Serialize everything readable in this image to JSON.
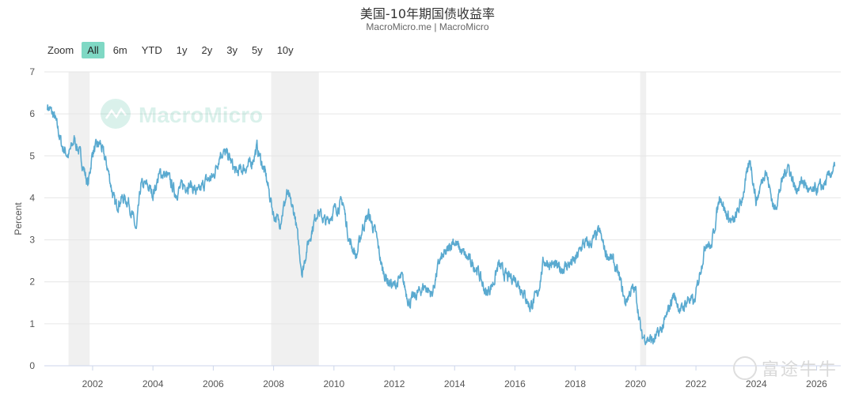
{
  "header": {
    "title": "美国-10年期国债收益率",
    "subtitle": "MacroMicro.me | MacroMicro"
  },
  "zoom": {
    "label": "Zoom",
    "options": [
      "All",
      "6m",
      "YTD",
      "1y",
      "2y",
      "3y",
      "5y",
      "10y"
    ],
    "selected": "All"
  },
  "watermark": {
    "brand": "MacroMicro",
    "corner": "富途牛牛"
  },
  "colors": {
    "line": "#5aaad0",
    "recession": "#f0f0f0",
    "grid": "#e6e6e6"
  },
  "chart_data": {
    "type": "line",
    "title": "美国-10年期国债收益率",
    "ylabel": "Percent",
    "xlabel": "",
    "xlim": [
      2000.4,
      2026.8
    ],
    "ylim": [
      0,
      7
    ],
    "yticks": [
      "0",
      "1",
      "2",
      "3",
      "4",
      "5",
      "6",
      "7"
    ],
    "xticks": [
      "2002",
      "2004",
      "2006",
      "2008",
      "2010",
      "2012",
      "2014",
      "2016",
      "2018",
      "2020",
      "2022",
      "2024",
      "2026"
    ],
    "grid": true,
    "recessions": [
      [
        2001.2,
        2001.9
      ],
      [
        2007.92,
        2009.5
      ],
      [
        2020.15,
        2020.35
      ]
    ],
    "series": [
      {
        "values": [
          [
            2000.5,
            6.2
          ],
          [
            2000.75,
            5.9
          ],
          [
            2001.0,
            5.2
          ],
          [
            2001.2,
            5.0
          ],
          [
            2001.4,
            5.4
          ],
          [
            2001.6,
            5.0
          ],
          [
            2001.85,
            4.3
          ],
          [
            2002.0,
            5.1
          ],
          [
            2002.25,
            5.3
          ],
          [
            2002.5,
            4.7
          ],
          [
            2002.75,
            3.8
          ],
          [
            2003.0,
            4.0
          ],
          [
            2003.2,
            3.9
          ],
          [
            2003.45,
            3.2
          ],
          [
            2003.6,
            4.3
          ],
          [
            2003.8,
            4.3
          ],
          [
            2004.0,
            4.1
          ],
          [
            2004.25,
            4.6
          ],
          [
            2004.5,
            4.5
          ],
          [
            2004.75,
            4.1
          ],
          [
            2005.0,
            4.3
          ],
          [
            2005.25,
            4.3
          ],
          [
            2005.5,
            4.1
          ],
          [
            2005.75,
            4.4
          ],
          [
            2006.0,
            4.5
          ],
          [
            2006.25,
            5.1
          ],
          [
            2006.5,
            5.0
          ],
          [
            2006.75,
            4.6
          ],
          [
            2007.0,
            4.7
          ],
          [
            2007.25,
            4.8
          ],
          [
            2007.45,
            5.2
          ],
          [
            2007.75,
            4.5
          ],
          [
            2008.0,
            3.6
          ],
          [
            2008.2,
            3.4
          ],
          [
            2008.45,
            4.1
          ],
          [
            2008.7,
            3.6
          ],
          [
            2008.95,
            2.2
          ],
          [
            2009.1,
            2.8
          ],
          [
            2009.45,
            3.7
          ],
          [
            2009.75,
            3.4
          ],
          [
            2010.0,
            3.7
          ],
          [
            2010.3,
            3.9
          ],
          [
            2010.5,
            3.0
          ],
          [
            2010.75,
            2.6
          ],
          [
            2010.95,
            3.3
          ],
          [
            2011.15,
            3.6
          ],
          [
            2011.4,
            3.1
          ],
          [
            2011.6,
            2.3
          ],
          [
            2011.8,
            2.0
          ],
          [
            2012.0,
            1.9
          ],
          [
            2012.25,
            2.1
          ],
          [
            2012.5,
            1.5
          ],
          [
            2012.75,
            1.7
          ],
          [
            2013.0,
            1.9
          ],
          [
            2013.25,
            1.7
          ],
          [
            2013.5,
            2.5
          ],
          [
            2013.75,
            2.7
          ],
          [
            2013.95,
            3.0
          ],
          [
            2014.25,
            2.7
          ],
          [
            2014.5,
            2.5
          ],
          [
            2014.75,
            2.3
          ],
          [
            2015.05,
            1.7
          ],
          [
            2015.3,
            2.0
          ],
          [
            2015.45,
            2.4
          ],
          [
            2015.75,
            2.1
          ],
          [
            2016.0,
            2.1
          ],
          [
            2016.25,
            1.8
          ],
          [
            2016.5,
            1.4
          ],
          [
            2016.75,
            1.7
          ],
          [
            2016.95,
            2.5
          ],
          [
            2017.25,
            2.4
          ],
          [
            2017.5,
            2.3
          ],
          [
            2017.75,
            2.4
          ],
          [
            2018.0,
            2.5
          ],
          [
            2018.25,
            2.9
          ],
          [
            2018.5,
            2.9
          ],
          [
            2018.8,
            3.2
          ],
          [
            2019.0,
            2.7
          ],
          [
            2019.25,
            2.5
          ],
          [
            2019.5,
            2.0
          ],
          [
            2019.65,
            1.5
          ],
          [
            2019.85,
            1.8
          ],
          [
            2020.0,
            1.8
          ],
          [
            2020.2,
            0.7
          ],
          [
            2020.4,
            0.65
          ],
          [
            2020.6,
            0.6
          ],
          [
            2020.85,
            0.85
          ],
          [
            2021.0,
            1.1
          ],
          [
            2021.25,
            1.7
          ],
          [
            2021.5,
            1.3
          ],
          [
            2021.75,
            1.6
          ],
          [
            2021.95,
            1.5
          ],
          [
            2022.15,
            2.3
          ],
          [
            2022.35,
            3.0
          ],
          [
            2022.5,
            2.8
          ],
          [
            2022.8,
            4.1
          ],
          [
            2023.0,
            3.6
          ],
          [
            2023.25,
            3.4
          ],
          [
            2023.5,
            3.9
          ],
          [
            2023.8,
            4.9
          ],
          [
            2024.0,
            3.9
          ],
          [
            2024.3,
            4.7
          ],
          [
            2024.6,
            3.7
          ],
          [
            2024.9,
            4.5
          ],
          [
            2025.05,
            4.8
          ],
          [
            2025.3,
            4.2
          ],
          [
            2025.55,
            4.4
          ],
          [
            2025.8,
            4.1
          ],
          [
            2026.0,
            4.2
          ],
          [
            2026.25,
            4.3
          ],
          [
            2026.6,
            4.75
          ]
        ]
      }
    ]
  }
}
